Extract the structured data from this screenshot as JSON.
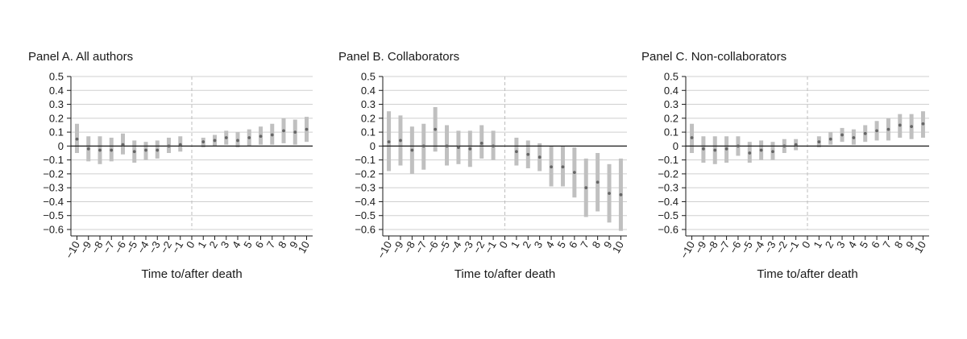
{
  "chart_data": [
    {
      "type": "errorbar",
      "title": "Panel A. All authors",
      "xlabel": "Time to/after death",
      "ylabel": "",
      "ylim": [
        -0.6,
        0.5
      ],
      "yticks": [
        0.5,
        0.4,
        0.3,
        0.2,
        0.1,
        0,
        -0.1,
        -0.2,
        -0.3,
        -0.4,
        -0.5,
        -0.6
      ],
      "ytick_labels": [
        "0.5",
        "0.4",
        "0.3",
        "0.2",
        "0.1",
        "0",
        "−0.1",
        "−0.2",
        "−0.3",
        "−0.4",
        "−0.5",
        "−0.6"
      ],
      "x": [
        -10,
        -9,
        -8,
        -7,
        -6,
        -5,
        -4,
        -3,
        -2,
        -1,
        0,
        1,
        2,
        3,
        4,
        5,
        6,
        7,
        8,
        9,
        10
      ],
      "xtick_labels": [
        "−10",
        "−9",
        "−8",
        "−7",
        "−6",
        "−5",
        "−4",
        "−3",
        "−2",
        "−1",
        "0",
        "1",
        "2",
        "3",
        "4",
        "5",
        "6",
        "7",
        "8",
        "9",
        "10"
      ],
      "estimates": [
        0.05,
        -0.02,
        -0.03,
        -0.03,
        0.01,
        -0.04,
        -0.03,
        -0.03,
        0.0,
        0.01,
        null,
        0.03,
        0.04,
        0.06,
        0.04,
        0.06,
        0.07,
        0.08,
        0.11,
        0.1,
        0.12
      ],
      "ci_low": [
        -0.05,
        -0.11,
        -0.13,
        -0.11,
        -0.06,
        -0.12,
        -0.1,
        -0.09,
        -0.05,
        -0.04,
        null,
        -0.01,
        0.0,
        0.01,
        -0.01,
        0.0,
        0.01,
        0.01,
        0.02,
        0.01,
        0.03
      ],
      "ci_high": [
        0.16,
        0.07,
        0.07,
        0.06,
        0.09,
        0.04,
        0.03,
        0.04,
        0.06,
        0.07,
        null,
        0.06,
        0.08,
        0.11,
        0.1,
        0.12,
        0.14,
        0.16,
        0.2,
        0.19,
        0.21
      ],
      "reference_x": 0,
      "grid": true
    },
    {
      "type": "errorbar",
      "title": "Panel B. Collaborators",
      "xlabel": "Time to/after death",
      "ylabel": "",
      "ylim": [
        -0.6,
        0.5
      ],
      "yticks": [
        0.5,
        0.4,
        0.3,
        0.2,
        0.1,
        0,
        -0.1,
        -0.2,
        -0.3,
        -0.4,
        -0.5,
        -0.6
      ],
      "ytick_labels": [
        "0.5",
        "0.4",
        "0.3",
        "0.2",
        "0.1",
        "0",
        "−0.1",
        "−0.2",
        "−0.3",
        "−0.4",
        "−0.5",
        "−0.6"
      ],
      "x": [
        -10,
        -9,
        -8,
        -7,
        -6,
        -5,
        -4,
        -3,
        -2,
        -1,
        0,
        1,
        2,
        3,
        4,
        5,
        6,
        7,
        8,
        9,
        10
      ],
      "xtick_labels": [
        "−10",
        "−9",
        "−8",
        "−7",
        "−6",
        "−5",
        "−4",
        "−3",
        "−2",
        "−1",
        "0",
        "1",
        "2",
        "3",
        "4",
        "5",
        "6",
        "7",
        "8",
        "9",
        "10"
      ],
      "estimates": [
        0.03,
        0.04,
        -0.03,
        0.0,
        0.12,
        0.0,
        -0.01,
        -0.02,
        0.02,
        0.0,
        null,
        -0.04,
        -0.06,
        -0.08,
        -0.15,
        -0.15,
        -0.19,
        -0.3,
        -0.26,
        -0.34,
        -0.35
      ],
      "ci_low": [
        -0.18,
        -0.14,
        -0.2,
        -0.17,
        -0.04,
        -0.14,
        -0.13,
        -0.15,
        -0.09,
        -0.1,
        null,
        -0.14,
        -0.16,
        -0.18,
        -0.29,
        -0.29,
        -0.37,
        -0.51,
        -0.47,
        -0.55,
        -0.61
      ],
      "ci_high": [
        0.25,
        0.22,
        0.14,
        0.16,
        0.28,
        0.15,
        0.11,
        0.11,
        0.15,
        0.11,
        null,
        0.06,
        0.04,
        0.02,
        0.0,
        0.0,
        -0.01,
        -0.09,
        -0.05,
        -0.13,
        -0.09
      ],
      "reference_x": 0,
      "grid": true
    },
    {
      "type": "errorbar",
      "title": "Panel C. Non-collaborators",
      "xlabel": "Time to/after death",
      "ylabel": "",
      "ylim": [
        -0.6,
        0.5
      ],
      "yticks": [
        0.5,
        0.4,
        0.3,
        0.2,
        0.1,
        0,
        -0.1,
        -0.2,
        -0.3,
        -0.4,
        -0.5,
        -0.6
      ],
      "ytick_labels": [
        "0.5",
        "0.4",
        "0.3",
        "0.2",
        "0.1",
        "0",
        "−0.1",
        "−0.2",
        "−0.3",
        "−0.4",
        "−0.5",
        "−0.6"
      ],
      "x": [
        -10,
        -9,
        -8,
        -7,
        -6,
        -5,
        -4,
        -3,
        -2,
        -1,
        0,
        1,
        2,
        3,
        4,
        5,
        6,
        7,
        8,
        9,
        10
      ],
      "xtick_labels": [
        "−10",
        "−9",
        "−8",
        "−7",
        "−6",
        "−5",
        "−4",
        "−3",
        "−2",
        "−1",
        "0",
        "1",
        "2",
        "3",
        "4",
        "5",
        "6",
        "7",
        "8",
        "9",
        "10"
      ],
      "estimates": [
        0.06,
        -0.02,
        -0.03,
        -0.02,
        0.0,
        -0.05,
        -0.03,
        -0.04,
        0.0,
        0.01,
        null,
        0.03,
        0.05,
        0.08,
        0.06,
        0.09,
        0.11,
        0.12,
        0.15,
        0.14,
        0.16
      ],
      "ci_low": [
        -0.05,
        -0.12,
        -0.13,
        -0.12,
        -0.07,
        -0.12,
        -0.1,
        -0.1,
        -0.05,
        -0.03,
        null,
        -0.01,
        0.01,
        0.03,
        0.01,
        0.03,
        0.04,
        0.04,
        0.06,
        0.05,
        0.06
      ],
      "ci_high": [
        0.16,
        0.07,
        0.07,
        0.07,
        0.07,
        0.03,
        0.04,
        0.03,
        0.05,
        0.05,
        null,
        0.07,
        0.1,
        0.13,
        0.12,
        0.15,
        0.18,
        0.2,
        0.23,
        0.23,
        0.25
      ],
      "reference_x": 0,
      "grid": true
    }
  ],
  "colors": {
    "ci_bar": "#c0c0c0",
    "estimate_dot": "#666666",
    "gridline": "#cfcfcf",
    "zero_line": "#1a1a1a",
    "reference_line": "#bdbdbd",
    "axis": "#1a1a1a"
  }
}
